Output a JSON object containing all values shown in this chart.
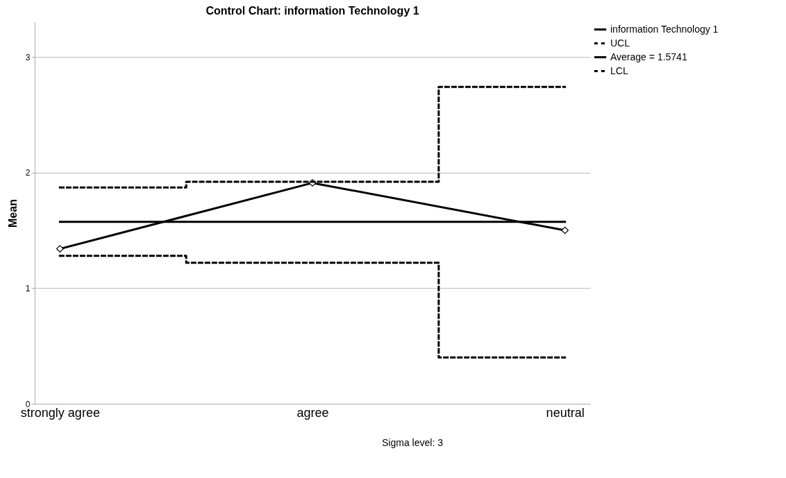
{
  "chart_data": {
    "type": "line",
    "title": "Control Chart: information Technology 1",
    "ylabel": "Mean",
    "categories": [
      "strongly agree",
      "agree",
      "neutral"
    ],
    "series": [
      {
        "name": "information Technology 1",
        "color": "#000000",
        "values": [
          1.34,
          1.91,
          1.5
        ],
        "marker": "diamond",
        "line_style": "solid"
      },
      {
        "name": "UCL",
        "type": "step",
        "color": "#000000",
        "values": [
          1.87,
          1.92,
          2.74
        ],
        "line_style": "dashed"
      },
      {
        "name": "Average = 1.5741",
        "color": "#000000",
        "values": [
          1.5741,
          1.5741,
          1.5741
        ],
        "line_style": "solid"
      },
      {
        "name": "LCL",
        "type": "step",
        "color": "#000000",
        "values": [
          1.28,
          1.22,
          0.4
        ],
        "line_style": "dashed"
      }
    ],
    "ylim": [
      0,
      3.3
    ],
    "yticks": [
      0,
      1,
      2,
      3
    ],
    "grid": "y",
    "legend": "top right",
    "annotations": [
      "Sigma level:     3"
    ]
  }
}
